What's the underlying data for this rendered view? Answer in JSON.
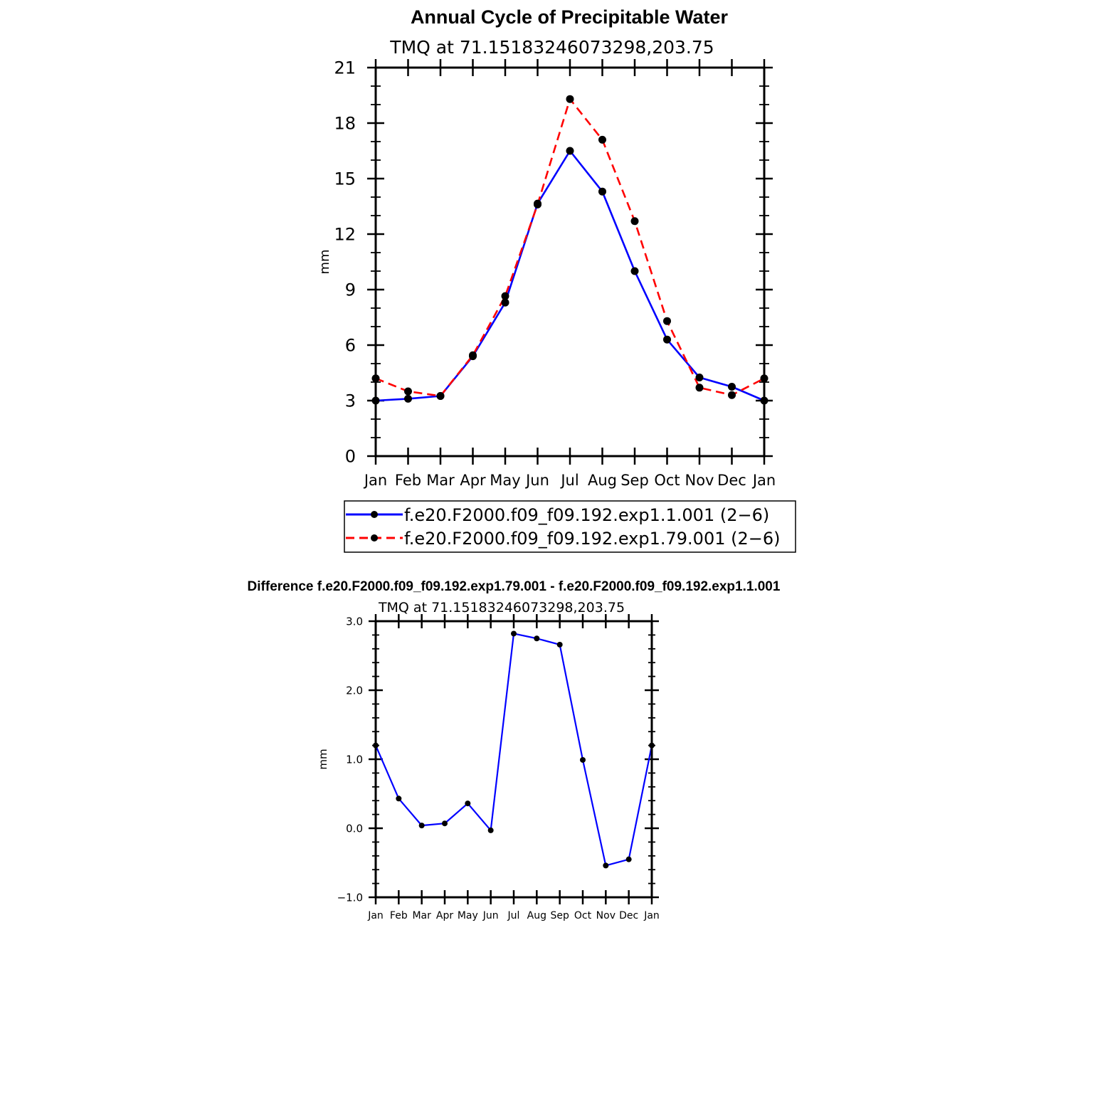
{
  "chart_data": [
    {
      "type": "line",
      "title": "Annual Cycle of Precipitable Water",
      "subtitle": "TMQ  at  71.15183246073298,203.75",
      "xlabel": "",
      "ylabel": "mm",
      "categories": [
        "Jan",
        "Feb",
        "Mar",
        "Apr",
        "May",
        "Jun",
        "Jul",
        "Aug",
        "Sep",
        "Oct",
        "Nov",
        "Dec",
        "Jan"
      ],
      "yticks": [
        "0",
        "3",
        "6",
        "9",
        "12",
        "15",
        "18",
        "21"
      ],
      "ylim": [
        0,
        21
      ],
      "series": [
        {
          "name": "f.e20.F2000.f09_f09.192.exp1.1.001 (2−6)",
          "color": "#0000ff",
          "style": "solid",
          "values": [
            3.0,
            3.1,
            3.25,
            5.4,
            8.3,
            13.65,
            16.5,
            14.3,
            10.0,
            6.3,
            4.25,
            3.75,
            3.0
          ]
        },
        {
          "name": "f.e20.F2000.f09_f09.192.exp1.79.001 (2−6)",
          "color": "#ff0000",
          "style": "dashed",
          "values": [
            4.2,
            3.5,
            3.25,
            5.45,
            8.65,
            13.6,
            19.3,
            17.1,
            12.7,
            7.3,
            3.7,
            3.3,
            4.2
          ]
        }
      ],
      "legend_position": "bottom"
    },
    {
      "type": "line",
      "title": "Difference f.e20.F2000.f09_f09.192.exp1.79.001 - f.e20.F2000.f09_f09.192.exp1.1.001",
      "subtitle": "TMQ  at  71.15183246073298,203.75",
      "xlabel": "",
      "ylabel": "mm",
      "categories": [
        "Jan",
        "Feb",
        "Mar",
        "Apr",
        "May",
        "Jun",
        "Jul",
        "Aug",
        "Sep",
        "Oct",
        "Nov",
        "Dec",
        "Jan"
      ],
      "yticks": [
        "−1.0",
        "0.0",
        "1.0",
        "2.0",
        "3.0"
      ],
      "ylim": [
        -1.0,
        3.0
      ],
      "series": [
        {
          "name": "Difference",
          "color": "#0000ff",
          "style": "solid",
          "values": [
            1.2,
            0.43,
            0.04,
            0.07,
            0.36,
            -0.03,
            2.82,
            2.75,
            2.66,
            0.99,
            -0.54,
            -0.45,
            1.2
          ]
        }
      ]
    }
  ]
}
